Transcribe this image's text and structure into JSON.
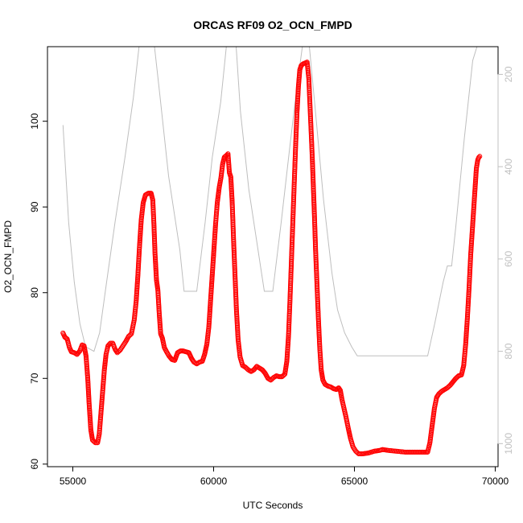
{
  "chart_data": {
    "type": "scatter",
    "title": "ORCAS RF09 O2_OCN_FMPD",
    "xlabel": "UTC Seconds",
    "ylabel": "O2_OCN_FMPD",
    "xlim": [
      54100,
      70100
    ],
    "ylim": [
      59.7,
      108.7
    ],
    "xticks": [
      55000,
      60000,
      65000,
      70000
    ],
    "yticks": [
      60,
      70,
      80,
      90,
      100
    ],
    "y2lim": [
      1050,
      140
    ],
    "y2ticks": [
      200,
      400,
      600,
      800,
      1000
    ],
    "y2_reversed": true,
    "colors": {
      "series": "#ff0000",
      "altitude": "#bebebe",
      "axis": "#000000"
    },
    "series": [
      {
        "marker": "open-circle",
        "points": [
          [
            54650,
            75.3
          ],
          [
            54720,
            74.8
          ],
          [
            54800,
            74.6
          ],
          [
            54880,
            73.6
          ],
          [
            54950,
            73.1
          ],
          [
            55050,
            73.0
          ],
          [
            55150,
            72.8
          ],
          [
            55250,
            73.2
          ],
          [
            55330,
            73.9
          ],
          [
            55400,
            73.8
          ],
          [
            55470,
            72.6
          ],
          [
            55530,
            70.0
          ],
          [
            55580,
            67.0
          ],
          [
            55640,
            64.0
          ],
          [
            55700,
            62.8
          ],
          [
            55800,
            62.5
          ],
          [
            55880,
            62.5
          ],
          [
            55940,
            63.5
          ],
          [
            56000,
            66.0
          ],
          [
            56060,
            68.5
          ],
          [
            56120,
            71.0
          ],
          [
            56180,
            72.8
          ],
          [
            56250,
            73.8
          ],
          [
            56330,
            74.1
          ],
          [
            56420,
            74.1
          ],
          [
            56500,
            73.4
          ],
          [
            56580,
            73.0
          ],
          [
            56680,
            73.3
          ],
          [
            56780,
            73.8
          ],
          [
            56880,
            74.3
          ],
          [
            56980,
            74.9
          ],
          [
            57080,
            75.2
          ],
          [
            57180,
            76.8
          ],
          [
            57250,
            79.0
          ],
          [
            57310,
            82.0
          ],
          [
            57370,
            85.5
          ],
          [
            57430,
            88.5
          ],
          [
            57500,
            90.5
          ],
          [
            57580,
            91.4
          ],
          [
            57680,
            91.6
          ],
          [
            57780,
            91.6
          ],
          [
            57840,
            90.8
          ],
          [
            57880,
            88.0
          ],
          [
            57920,
            84.5
          ],
          [
            57970,
            81.5
          ],
          [
            58020,
            80.3
          ],
          [
            58070,
            77.5
          ],
          [
            58120,
            75.2
          ],
          [
            58180,
            74.7
          ],
          [
            58250,
            73.6
          ],
          [
            58330,
            73.1
          ],
          [
            58420,
            72.6
          ],
          [
            58520,
            72.2
          ],
          [
            58620,
            72.1
          ],
          [
            58720,
            73.0
          ],
          [
            58820,
            73.2
          ],
          [
            58920,
            73.2
          ],
          [
            59020,
            73.1
          ],
          [
            59120,
            73.0
          ],
          [
            59220,
            72.3
          ],
          [
            59300,
            71.9
          ],
          [
            59400,
            71.7
          ],
          [
            59500,
            71.9
          ],
          [
            59600,
            72.0
          ],
          [
            59680,
            72.8
          ],
          [
            59760,
            74.0
          ],
          [
            59830,
            76.0
          ],
          [
            59890,
            79.0
          ],
          [
            59950,
            82.0
          ],
          [
            60010,
            85.0
          ],
          [
            60070,
            88.0
          ],
          [
            60130,
            90.5
          ],
          [
            60200,
            92.3
          ],
          [
            60260,
            93.4
          ],
          [
            60320,
            95.0
          ],
          [
            60380,
            95.8
          ],
          [
            60450,
            96.0
          ],
          [
            60510,
            96.2
          ],
          [
            60560,
            94.0
          ],
          [
            60610,
            93.5
          ],
          [
            60660,
            90.5
          ],
          [
            60710,
            86.0
          ],
          [
            60760,
            82.0
          ],
          [
            60810,
            78.0
          ],
          [
            60870,
            74.5
          ],
          [
            60940,
            72.5
          ],
          [
            61030,
            71.5
          ],
          [
            61130,
            71.3
          ],
          [
            61230,
            71.0
          ],
          [
            61330,
            70.8
          ],
          [
            61430,
            71.0
          ],
          [
            61530,
            71.4
          ],
          [
            61630,
            71.2
          ],
          [
            61730,
            71.0
          ],
          [
            61830,
            70.6
          ],
          [
            61930,
            70.0
          ],
          [
            62030,
            69.8
          ],
          [
            62130,
            70.1
          ],
          [
            62230,
            70.3
          ],
          [
            62330,
            70.2
          ],
          [
            62430,
            70.2
          ],
          [
            62530,
            70.5
          ],
          [
            62600,
            72.0
          ],
          [
            62660,
            75.0
          ],
          [
            62710,
            79.0
          ],
          [
            62760,
            83.5
          ],
          [
            62810,
            88.0
          ],
          [
            62860,
            92.5
          ],
          [
            62910,
            97.0
          ],
          [
            62960,
            101.0
          ],
          [
            63010,
            104.0
          ],
          [
            63060,
            106.0
          ],
          [
            63110,
            106.5
          ],
          [
            63180,
            106.7
          ],
          [
            63250,
            106.8
          ],
          [
            63320,
            106.9
          ],
          [
            63380,
            105.0
          ],
          [
            63420,
            102.0
          ],
          [
            63460,
            99.0
          ],
          [
            63500,
            96.0
          ],
          [
            63540,
            92.5
          ],
          [
            63580,
            89.0
          ],
          [
            63620,
            85.0
          ],
          [
            63670,
            81.0
          ],
          [
            63720,
            77.0
          ],
          [
            63770,
            73.5
          ],
          [
            63820,
            71.0
          ],
          [
            63880,
            69.8
          ],
          [
            63960,
            69.3
          ],
          [
            64060,
            69.1
          ],
          [
            64160,
            69.0
          ],
          [
            64260,
            68.8
          ],
          [
            64360,
            68.7
          ],
          [
            64440,
            68.9
          ],
          [
            64500,
            68.6
          ],
          [
            64560,
            67.5
          ],
          [
            64630,
            66.5
          ],
          [
            64700,
            65.5
          ],
          [
            64780,
            64.2
          ],
          [
            64860,
            63.0
          ],
          [
            64950,
            62.0
          ],
          [
            65050,
            61.5
          ],
          [
            65150,
            61.2
          ],
          [
            65300,
            61.2
          ],
          [
            65500,
            61.3
          ],
          [
            65700,
            61.5
          ],
          [
            65900,
            61.6
          ],
          [
            66000,
            61.7
          ],
          [
            66200,
            61.6
          ],
          [
            66500,
            61.5
          ],
          [
            66800,
            61.4
          ],
          [
            67100,
            61.4
          ],
          [
            67400,
            61.4
          ],
          [
            67600,
            61.4
          ],
          [
            67680,
            62.5
          ],
          [
            67760,
            64.5
          ],
          [
            67840,
            66.5
          ],
          [
            67920,
            67.8
          ],
          [
            68000,
            68.2
          ],
          [
            68100,
            68.5
          ],
          [
            68200,
            68.7
          ],
          [
            68300,
            68.9
          ],
          [
            68400,
            69.2
          ],
          [
            68500,
            69.6
          ],
          [
            68600,
            70.0
          ],
          [
            68700,
            70.3
          ],
          [
            68800,
            70.4
          ],
          [
            68880,
            71.5
          ],
          [
            68950,
            74.0
          ],
          [
            69010,
            77.0
          ],
          [
            69070,
            80.5
          ],
          [
            69130,
            84.5
          ],
          [
            69200,
            88.0
          ],
          [
            69270,
            91.5
          ],
          [
            69330,
            94.5
          ],
          [
            69380,
            95.5
          ],
          [
            69420,
            95.8
          ],
          [
            69450,
            95.9
          ]
        ]
      },
      {
        "axis": "right",
        "points": [
          [
            54650,
            310
          ],
          [
            54850,
            520
          ],
          [
            55050,
            650
          ],
          [
            55250,
            740
          ],
          [
            55450,
            790
          ],
          [
            55750,
            800
          ],
          [
            55950,
            760
          ],
          [
            56200,
            650
          ],
          [
            56500,
            520
          ],
          [
            56850,
            380
          ],
          [
            57150,
            250
          ],
          [
            57350,
            140
          ],
          [
            57900,
            140
          ],
          [
            58100,
            250
          ],
          [
            58400,
            420
          ],
          [
            58800,
            580
          ],
          [
            58950,
            670
          ],
          [
            59400,
            670
          ],
          [
            59700,
            520
          ],
          [
            59950,
            380
          ],
          [
            60250,
            260
          ],
          [
            60450,
            140
          ],
          [
            60800,
            140
          ],
          [
            60950,
            280
          ],
          [
            61250,
            450
          ],
          [
            61800,
            670
          ],
          [
            62100,
            670
          ],
          [
            62400,
            520
          ],
          [
            62700,
            360
          ],
          [
            62950,
            230
          ],
          [
            63150,
            140
          ],
          [
            63400,
            140
          ],
          [
            63600,
            270
          ],
          [
            63900,
            470
          ],
          [
            64200,
            630
          ],
          [
            64400,
            710
          ],
          [
            64650,
            760
          ],
          [
            64900,
            790
          ],
          [
            65100,
            810
          ],
          [
            65500,
            810
          ],
          [
            66000,
            810
          ],
          [
            66500,
            810
          ],
          [
            67000,
            810
          ],
          [
            67600,
            810
          ],
          [
            67850,
            740
          ],
          [
            68150,
            650
          ],
          [
            68300,
            615
          ],
          [
            68450,
            615
          ],
          [
            68600,
            530
          ],
          [
            68900,
            340
          ],
          [
            69200,
            170
          ],
          [
            69350,
            140
          ]
        ]
      }
    ]
  }
}
